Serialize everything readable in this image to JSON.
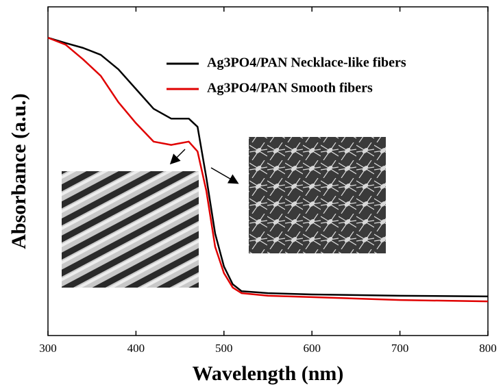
{
  "chart_data": {
    "type": "line",
    "xlabel": "Wavelength (nm)",
    "ylabel": "Absorbance (a.u.)",
    "xlim": [
      300,
      800
    ],
    "xticks": [
      300,
      400,
      500,
      600,
      700,
      800
    ],
    "ylim": [
      0,
      100
    ],
    "x": [
      300,
      320,
      340,
      360,
      380,
      400,
      420,
      440,
      460,
      470,
      480,
      490,
      500,
      510,
      520,
      550,
      600,
      700,
      800
    ],
    "series": [
      {
        "name": "Ag3PO4/PAN Necklace-like fibers",
        "color": "#000000",
        "values": [
          90.6,
          89,
          87.5,
          85.4,
          81,
          75,
          69,
          66,
          66,
          63.5,
          48,
          31,
          21,
          15.6,
          13.5,
          12.9,
          12.5,
          12.1,
          11.9
        ]
      },
      {
        "name": "Ag3PO4/PAN Smooth fibers",
        "color": "#e00000",
        "values": [
          90.6,
          88.5,
          84,
          79,
          71,
          64.6,
          59,
          58,
          59,
          56,
          44,
          27,
          19,
          14.6,
          12.9,
          12.1,
          11.7,
          10.8,
          10.4
        ]
      }
    ]
  }
}
